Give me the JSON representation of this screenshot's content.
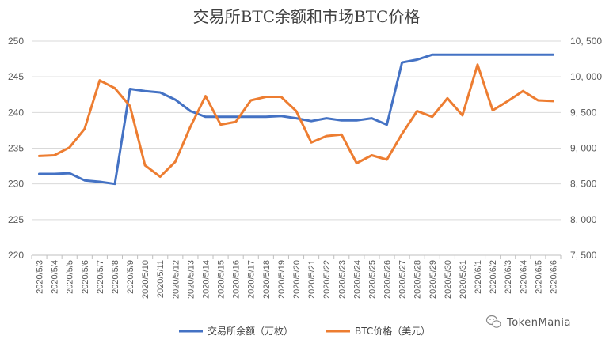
{
  "chart_data": {
    "type": "line",
    "title": "交易所BTC余额和市场BTC价格",
    "categories": [
      "2020/5/3",
      "2020/5/4",
      "2020/5/5",
      "2020/5/6",
      "2020/5/7",
      "2020/5/8",
      "2020/5/9",
      "2020/5/10",
      "2020/5/11",
      "2020/5/12",
      "2020/5/13",
      "2020/5/14",
      "2020/5/15",
      "2020/5/16",
      "2020/5/17",
      "2020/5/18",
      "2020/5/19",
      "2020/5/20",
      "2020/5/21",
      "2020/5/22",
      "2020/5/23",
      "2020/5/24",
      "2020/5/25",
      "2020/5/26",
      "2020/5/27",
      "2020/5/28",
      "2020/5/29",
      "2020/5/30",
      "2020/5/31",
      "2020/6/1",
      "2020/6/2",
      "2020/6/3",
      "2020/6/4",
      "2020/6/5",
      "2020/6/6"
    ],
    "y_left": {
      "min": 220,
      "max": 250,
      "ticks": [
        "220",
        "225",
        "230",
        "235",
        "240",
        "245",
        "250"
      ]
    },
    "y_right": {
      "min": 7500,
      "max": 10500,
      "ticks": [
        "7, 500",
        "8, 000",
        "8, 500",
        "9, 000",
        "9, 500",
        "10, 000",
        "10, 500"
      ]
    },
    "grid": true,
    "legend_position": "bottom",
    "series": [
      {
        "name": "交易所余额（万枚）",
        "axis": "left",
        "color": "#4472C4",
        "values": [
          231.4,
          231.4,
          231.5,
          230.5,
          230.3,
          230.0,
          243.3,
          243.0,
          242.8,
          241.8,
          240.2,
          239.4,
          239.4,
          239.4,
          239.4,
          239.4,
          239.5,
          239.2,
          238.8,
          239.2,
          238.9,
          238.9,
          239.2,
          238.3,
          247.0,
          247.4,
          248.1,
          248.1,
          248.1,
          248.1,
          248.1,
          248.1,
          248.1,
          248.1,
          248.1
        ]
      },
      {
        "name": "BTC价格（美元）",
        "axis": "right",
        "color": "#ED7D31",
        "values": [
          8890,
          8900,
          9010,
          9270,
          9950,
          9840,
          9590,
          8760,
          8600,
          8810,
          9300,
          9730,
          9330,
          9370,
          9670,
          9720,
          9720,
          9520,
          9080,
          9170,
          9190,
          8790,
          8900,
          8840,
          9200,
          9520,
          9440,
          9700,
          9460,
          10170,
          9530,
          9660,
          9800,
          9670,
          9660
        ]
      }
    ]
  },
  "watermark": {
    "text": "TokenMania",
    "icon": "wechat-icon"
  }
}
